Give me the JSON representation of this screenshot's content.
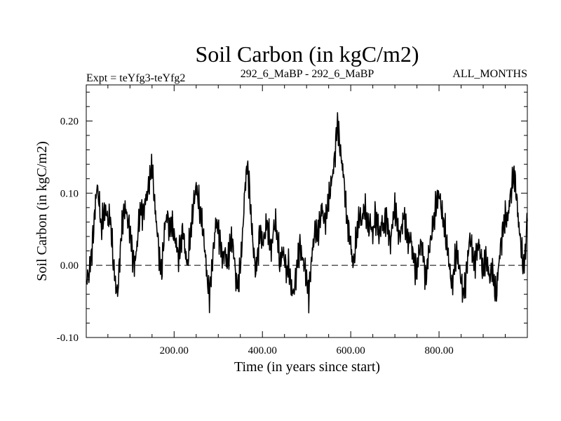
{
  "chart_data": {
    "type": "line",
    "title": "Soil Carbon (in kgC/m2)",
    "subtitle_left": "Expt = teYfg3-teYfg2",
    "subtitle_center": "292_6_MaBP - 292_6_MaBP",
    "subtitle_right": "ALL_MONTHS",
    "xlabel": "Time (in years since start)",
    "ylabel": "Soil Carbon (in kgC/m2)",
    "xlim": [
      1,
      1000
    ],
    "ylim": [
      -0.1,
      0.25
    ],
    "xticks": [
      200,
      400,
      600,
      800
    ],
    "xtick_labels": [
      "200.00",
      "400.00",
      "600.00",
      "800.00"
    ],
    "yticks": [
      -0.1,
      0.0,
      0.1,
      0.2
    ],
    "ytick_labels": [
      "-0.10",
      "0.00",
      "0.10",
      "0.20"
    ],
    "reference_line": {
      "y": 0.0,
      "style": "dashed"
    },
    "series": [
      {
        "name": "Soil Carbon",
        "anchors": [
          [
            1,
            -0.02
          ],
          [
            8,
            -0.01
          ],
          [
            15,
            0.03
          ],
          [
            20,
            0.07
          ],
          [
            25,
            0.11
          ],
          [
            30,
            0.09
          ],
          [
            35,
            0.05
          ],
          [
            40,
            0.07
          ],
          [
            45,
            0.08
          ],
          [
            50,
            0.06
          ],
          [
            55,
            0.07
          ],
          [
            58,
            0.04
          ],
          [
            63,
            0.0
          ],
          [
            68,
            -0.03
          ],
          [
            72,
            -0.04
          ],
          [
            76,
            0.0
          ],
          [
            80,
            0.04
          ],
          [
            85,
            0.07
          ],
          [
            90,
            0.08
          ],
          [
            95,
            0.06
          ],
          [
            100,
            0.05
          ],
          [
            105,
            0.02
          ],
          [
            110,
            0.0
          ],
          [
            115,
            0.02
          ],
          [
            120,
            0.06
          ],
          [
            125,
            0.08
          ],
          [
            130,
            0.07
          ],
          [
            135,
            0.09
          ],
          [
            140,
            0.1
          ],
          [
            145,
            0.12
          ],
          [
            150,
            0.14
          ],
          [
            153,
            0.11
          ],
          [
            158,
            0.07
          ],
          [
            163,
            0.04
          ],
          [
            168,
            0.0
          ],
          [
            172,
            -0.01
          ],
          [
            176,
            0.03
          ],
          [
            180,
            0.06
          ],
          [
            185,
            0.07
          ],
          [
            190,
            0.05
          ],
          [
            195,
            0.06
          ],
          [
            200,
            0.04
          ],
          [
            205,
            0.03
          ],
          [
            210,
            0.01
          ],
          [
            215,
            0.03
          ],
          [
            220,
            0.05
          ],
          [
            225,
            0.02
          ],
          [
            230,
            0.0
          ],
          [
            235,
            0.03
          ],
          [
            240,
            0.06
          ],
          [
            245,
            0.09
          ],
          [
            250,
            0.11
          ],
          [
            255,
            0.09
          ],
          [
            260,
            0.07
          ],
          [
            265,
            0.05
          ],
          [
            270,
            0.02
          ],
          [
            275,
            -0.02
          ],
          [
            280,
            -0.04
          ],
          [
            285,
            -0.01
          ],
          [
            290,
            0.03
          ],
          [
            295,
            0.06
          ],
          [
            300,
            0.05
          ],
          [
            305,
            0.03
          ],
          [
            310,
            0.01
          ],
          [
            315,
            0.02
          ],
          [
            320,
            0.0
          ],
          [
            325,
            0.02
          ],
          [
            330,
            0.04
          ],
          [
            335,
            0.02
          ],
          [
            340,
            -0.02
          ],
          [
            345,
            -0.03
          ],
          [
            350,
            0.0
          ],
          [
            355,
            0.04
          ],
          [
            358,
            0.08
          ],
          [
            362,
            0.12
          ],
          [
            366,
            0.14
          ],
          [
            370,
            0.11
          ],
          [
            375,
            0.06
          ],
          [
            380,
            0.02
          ],
          [
            385,
            -0.01
          ],
          [
            390,
            0.02
          ],
          [
            395,
            0.05
          ],
          [
            400,
            0.03
          ],
          [
            405,
            0.04
          ],
          [
            410,
            0.06
          ],
          [
            415,
            0.04
          ],
          [
            420,
            0.02
          ],
          [
            425,
            0.05
          ],
          [
            430,
            0.06
          ],
          [
            435,
            0.03
          ],
          [
            440,
            0.0
          ],
          [
            445,
            0.02
          ],
          [
            450,
            0.01
          ],
          [
            455,
            -0.01
          ],
          [
            460,
            0.0
          ],
          [
            465,
            -0.03
          ],
          [
            470,
            -0.04
          ],
          [
            475,
            -0.02
          ],
          [
            480,
            0.01
          ],
          [
            485,
            0.03
          ],
          [
            490,
            0.01
          ],
          [
            495,
            0.0
          ],
          [
            500,
            -0.02
          ],
          [
            505,
            -0.04
          ],
          [
            510,
            0.0
          ],
          [
            515,
            0.03
          ],
          [
            520,
            0.05
          ],
          [
            525,
            0.04
          ],
          [
            530,
            0.06
          ],
          [
            535,
            0.08
          ],
          [
            540,
            0.06
          ],
          [
            545,
            0.07
          ],
          [
            550,
            0.09
          ],
          [
            555,
            0.11
          ],
          [
            560,
            0.13
          ],
          [
            565,
            0.16
          ],
          [
            570,
            0.2
          ],
          [
            573,
            0.18
          ],
          [
            578,
            0.15
          ],
          [
            583,
            0.13
          ],
          [
            587,
            0.1
          ],
          [
            590,
            0.07
          ],
          [
            595,
            0.05
          ],
          [
            600,
            0.03
          ],
          [
            605,
            0.0
          ],
          [
            610,
            0.02
          ],
          [
            615,
            0.05
          ],
          [
            620,
            0.07
          ],
          [
            625,
            0.06
          ],
          [
            630,
            0.08
          ],
          [
            635,
            0.07
          ],
          [
            640,
            0.05
          ],
          [
            645,
            0.06
          ],
          [
            650,
            0.04
          ],
          [
            655,
            0.07
          ],
          [
            660,
            0.06
          ],
          [
            665,
            0.04
          ],
          [
            670,
            0.06
          ],
          [
            675,
            0.05
          ],
          [
            680,
            0.07
          ],
          [
            685,
            0.05
          ],
          [
            690,
            0.03
          ],
          [
            695,
            0.06
          ],
          [
            700,
            0.08
          ],
          [
            705,
            0.06
          ],
          [
            710,
            0.04
          ],
          [
            715,
            0.05
          ],
          [
            720,
            0.07
          ],
          [
            725,
            0.05
          ],
          [
            730,
            0.03
          ],
          [
            735,
            0.04
          ],
          [
            740,
            0.02
          ],
          [
            745,
            0.0
          ],
          [
            750,
            -0.01
          ],
          [
            755,
            0.02
          ],
          [
            760,
            0.03
          ],
          [
            765,
            0.01
          ],
          [
            770,
            -0.02
          ],
          [
            775,
            0.01
          ],
          [
            780,
            0.03
          ],
          [
            785,
            0.05
          ],
          [
            790,
            0.07
          ],
          [
            795,
            0.09
          ],
          [
            800,
            0.1
          ],
          [
            805,
            0.08
          ],
          [
            810,
            0.06
          ],
          [
            815,
            0.04
          ],
          [
            820,
            0.02
          ],
          [
            825,
            -0.01
          ],
          [
            830,
            -0.03
          ],
          [
            835,
            0.0
          ],
          [
            840,
            0.02
          ],
          [
            845,
            0.0
          ],
          [
            850,
            -0.02
          ],
          [
            855,
            -0.04
          ],
          [
            860,
            -0.02
          ],
          [
            865,
            0.01
          ],
          [
            870,
            0.04
          ],
          [
            875,
            0.02
          ],
          [
            880,
            0.0
          ],
          [
            885,
            0.02
          ],
          [
            890,
            0.03
          ],
          [
            895,
            0.01
          ],
          [
            900,
            -0.01
          ],
          [
            905,
            0.01
          ],
          [
            910,
            0.0
          ],
          [
            915,
            -0.02
          ],
          [
            920,
            0.0
          ],
          [
            925,
            -0.03
          ],
          [
            930,
            -0.04
          ],
          [
            935,
            0.0
          ],
          [
            940,
            0.03
          ],
          [
            945,
            0.05
          ],
          [
            950,
            0.07
          ],
          [
            955,
            0.06
          ],
          [
            960,
            0.09
          ],
          [
            965,
            0.11
          ],
          [
            970,
            0.13
          ],
          [
            975,
            0.1
          ],
          [
            980,
            0.06
          ],
          [
            985,
            0.03
          ],
          [
            990,
            0.0
          ],
          [
            995,
            0.01
          ],
          [
            1000,
            0.07
          ]
        ]
      }
    ]
  }
}
